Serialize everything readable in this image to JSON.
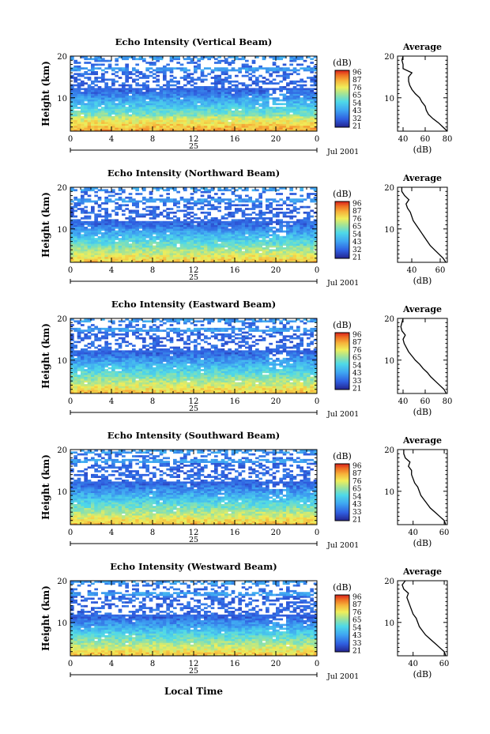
{
  "figure": {
    "bottom_label": "Local Time",
    "colors": {
      "ink": "#000000",
      "background": "#ffffff"
    }
  },
  "chart_data": [
    {
      "type": "heatmap",
      "title": "Echo Intensity (Vertical Beam)",
      "ylabel": "Height (km)",
      "xlim": [
        0,
        24
      ],
      "ylim": [
        2,
        20
      ],
      "x_ticks": [
        "0",
        "4",
        "8",
        "12",
        "16",
        "20",
        "0"
      ],
      "y_ticks": [
        "10",
        "20"
      ],
      "date_day": "25",
      "date_label": "Jul 2001",
      "colorbar": {
        "title": "(dB)",
        "levels": [
          "96",
          "87",
          "76",
          "65",
          "54",
          "43",
          "32",
          "21"
        ]
      },
      "noise_floor_km": 11.5,
      "tropopause_km": 16.5,
      "average_profile": {
        "title": "Average",
        "xlabel": "(dB)",
        "ylabel": "",
        "xlim": [
          35,
          80
        ],
        "x_ticks": [
          "40",
          "60",
          "80"
        ],
        "ylim": [
          2,
          20
        ],
        "y_ticks": [
          "10",
          "20"
        ],
        "height_km": [
          2,
          3,
          4,
          5,
          6,
          7,
          8,
          9,
          10,
          11,
          12,
          13,
          14,
          15,
          16,
          17,
          18,
          19,
          20
        ],
        "value_db": [
          80,
          76,
          72,
          67,
          63,
          61,
          60,
          57,
          55,
          51,
          48,
          46,
          45,
          45,
          48,
          40,
          40,
          39,
          40
        ]
      }
    },
    {
      "type": "heatmap",
      "title": "Echo Intensity (Northward Beam)",
      "ylabel": "Height (km)",
      "xlim": [
        0,
        24
      ],
      "ylim": [
        2,
        20
      ],
      "x_ticks": [
        "0",
        "4",
        "8",
        "12",
        "16",
        "20",
        "0"
      ],
      "y_ticks": [
        "10",
        "20"
      ],
      "date_day": "25",
      "date_label": "Jul 2001",
      "colorbar": {
        "title": "(dB)",
        "levels": [
          "96",
          "87",
          "76",
          "65",
          "54",
          "43",
          "32",
          "21"
        ]
      },
      "noise_floor_km": 11.0,
      "tropopause_km": 16.5,
      "average_profile": {
        "title": "Average",
        "xlabel": "(dB)",
        "ylabel": "",
        "xlim": [
          30,
          65
        ],
        "x_ticks": [
          "40",
          "60"
        ],
        "ylim": [
          2,
          20
        ],
        "y_ticks": [
          "10",
          "20"
        ],
        "height_km": [
          2,
          3,
          4,
          5,
          6,
          7,
          8,
          9,
          10,
          11,
          12,
          13,
          14,
          15,
          16,
          17,
          18,
          19,
          20
        ],
        "value_db": [
          64,
          62,
          59,
          56,
          53,
          51,
          49,
          47,
          45,
          43,
          41,
          40,
          39,
          37,
          36,
          38,
          35,
          33,
          33
        ]
      }
    },
    {
      "type": "heatmap",
      "title": "Echo Intensity (Eastward Beam)",
      "ylabel": "Height (km)",
      "xlim": [
        0,
        24
      ],
      "ylim": [
        2,
        20
      ],
      "x_ticks": [
        "0",
        "4",
        "8",
        "12",
        "16",
        "20",
        "0"
      ],
      "y_ticks": [
        "10",
        "20"
      ],
      "date_day": "25",
      "date_label": "Jul 2001",
      "colorbar": {
        "title": "(dB)",
        "levels": [
          "96",
          "87",
          "76",
          "65",
          "54",
          "43",
          "33",
          "21"
        ]
      },
      "noise_floor_km": 11.5,
      "tropopause_km": 17.0,
      "average_profile": {
        "title": "Average",
        "xlabel": "(dB)",
        "ylabel": "",
        "xlim": [
          35,
          80
        ],
        "x_ticks": [
          "40",
          "60",
          "80"
        ],
        "ylim": [
          2,
          20
        ],
        "y_ticks": [
          "10",
          "20"
        ],
        "height_km": [
          2,
          3,
          4,
          5,
          6,
          7,
          8,
          9,
          10,
          11,
          12,
          13,
          14,
          15,
          16,
          17,
          18,
          19,
          20
        ],
        "value_db": [
          79,
          77,
          73,
          69,
          65,
          62,
          58,
          55,
          51,
          48,
          45,
          43,
          41,
          40,
          42,
          39,
          38,
          39,
          40
        ]
      }
    },
    {
      "type": "heatmap",
      "title": "Echo Intensity (Southward Beam)",
      "ylabel": "Height (km)",
      "xlim": [
        0,
        24
      ],
      "ylim": [
        2,
        20
      ],
      "x_ticks": [
        "0",
        "4",
        "8",
        "12",
        "16",
        "20",
        "0"
      ],
      "y_ticks": [
        "10",
        "20"
      ],
      "date_day": "25",
      "date_label": "Jul 2001",
      "colorbar": {
        "title": "(dB)",
        "levels": [
          "96",
          "87",
          "76",
          "65",
          "54",
          "43",
          "33",
          "21"
        ]
      },
      "noise_floor_km": 11.5,
      "tropopause_km": 17.0,
      "average_profile": {
        "title": "Average",
        "xlabel": "(dB)",
        "ylabel": "",
        "xlim": [
          30,
          62
        ],
        "x_ticks": [
          "40",
          "60"
        ],
        "ylim": [
          2,
          20
        ],
        "y_ticks": [
          "10",
          "20"
        ],
        "height_km": [
          2,
          3,
          4,
          5,
          6,
          7,
          8,
          9,
          10,
          11,
          12,
          13,
          14,
          15,
          16,
          17,
          18,
          19,
          20
        ],
        "value_db": [
          61,
          60,
          57,
          54,
          51,
          49,
          47,
          45,
          44,
          43,
          41,
          40,
          39,
          39,
          37,
          38,
          35,
          34,
          34
        ]
      }
    },
    {
      "type": "heatmap",
      "title": "Echo Intensity (Westward Beam)",
      "ylabel": "Height (km)",
      "xlim": [
        0,
        24
      ],
      "ylim": [
        2,
        20
      ],
      "x_ticks": [
        "0",
        "4",
        "8",
        "12",
        "16",
        "20",
        "0"
      ],
      "y_ticks": [
        "10",
        "20"
      ],
      "date_day": "25",
      "date_label": "Jul 2001",
      "colorbar": {
        "title": "(dB)",
        "levels": [
          "96",
          "87",
          "76",
          "65",
          "54",
          "43",
          "33",
          "21"
        ]
      },
      "noise_floor_km": 11.0,
      "tropopause_km": 16.5,
      "average_profile": {
        "title": "Average",
        "xlabel": "(dB)",
        "ylabel": "",
        "xlim": [
          30,
          62
        ],
        "x_ticks": [
          "40",
          "60"
        ],
        "ylim": [
          2,
          20
        ],
        "y_ticks": [
          "10",
          "20"
        ],
        "height_km": [
          2,
          3,
          4,
          5,
          6,
          7,
          8,
          9,
          10,
          11,
          12,
          13,
          14,
          15,
          16,
          17,
          18,
          19,
          20
        ],
        "value_db": [
          61,
          60,
          57,
          54,
          51,
          48,
          46,
          44,
          43,
          42,
          40,
          39,
          38,
          37,
          36,
          37,
          34,
          33,
          35
        ]
      }
    }
  ]
}
